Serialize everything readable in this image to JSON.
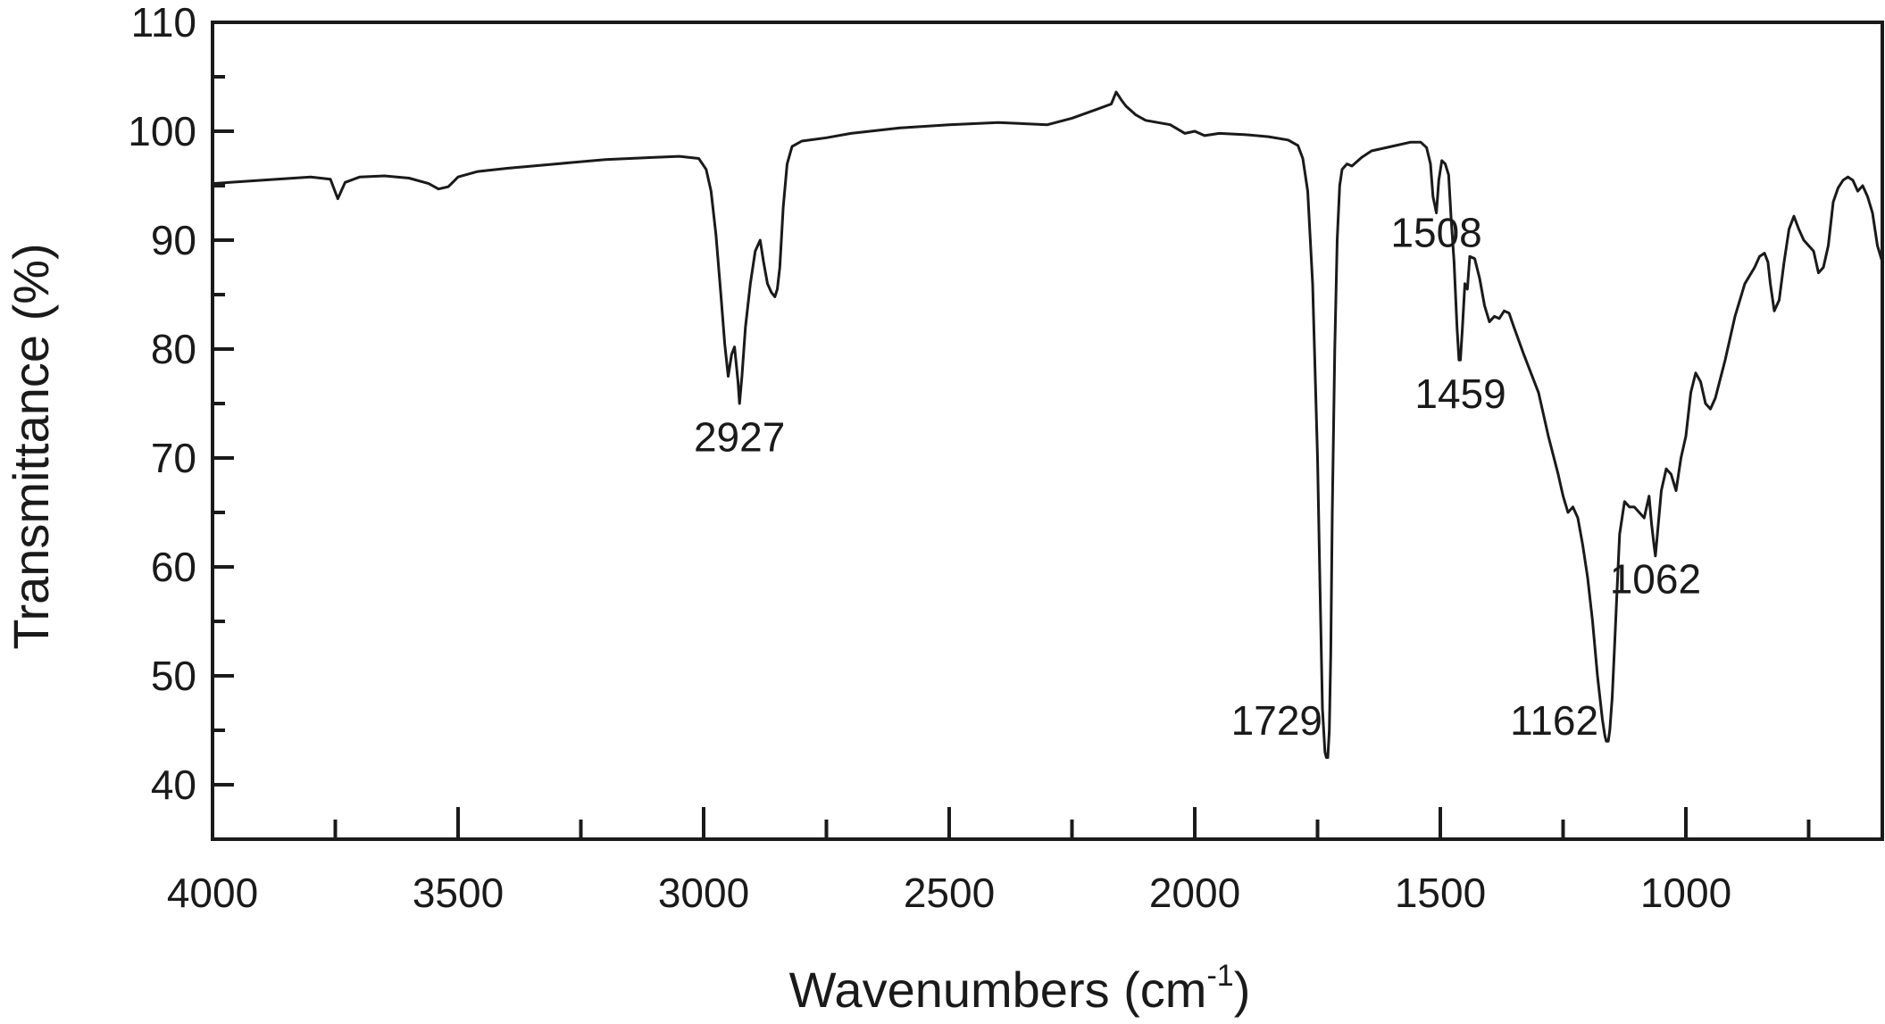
{
  "chart_data": {
    "type": "line",
    "xlabel": "Wavenumbers (cm",
    "xlabel_sup": "-1",
    "xlabel_close": ")",
    "ylabel": "Transmittance (%)",
    "xlim": [
      4000,
      600
    ],
    "ylim": [
      35,
      110
    ],
    "x_reversed": true,
    "grid": false,
    "x_ticks": [
      4000,
      3500,
      3000,
      2500,
      2000,
      1500,
      1000
    ],
    "x_minor_ticks": [
      3750,
      3250,
      2750,
      2250,
      1750,
      1250,
      750
    ],
    "y_ticks": [
      40,
      50,
      60,
      70,
      80,
      90,
      100,
      110
    ],
    "y_minor_ticks": [
      45,
      55,
      65,
      75,
      85,
      95,
      105
    ],
    "line_color": "#1a1a1a",
    "series": [
      {
        "x": [
          4000,
          3900,
          3800,
          3760,
          3745,
          3730,
          3700,
          3650,
          3600,
          3560,
          3540,
          3520,
          3500,
          3460,
          3400,
          3300,
          3200,
          3100,
          3050,
          3010,
          2995,
          2985,
          2975,
          2965,
          2957,
          2950,
          2943,
          2937,
          2930,
          2927,
          2922,
          2915,
          2905,
          2895,
          2885,
          2878,
          2870,
          2862,
          2855,
          2850,
          2845,
          2838,
          2830,
          2820,
          2800,
          2750,
          2700,
          2600,
          2500,
          2400,
          2300,
          2250,
          2200,
          2170,
          2160,
          2150,
          2140,
          2120,
          2100,
          2050,
          2020,
          2000,
          1980,
          1950,
          1900,
          1850,
          1810,
          1790,
          1780,
          1770,
          1760,
          1750,
          1745,
          1740,
          1735,
          1732,
          1729,
          1726,
          1723,
          1720,
          1715,
          1710,
          1705,
          1700,
          1690,
          1680,
          1660,
          1640,
          1600,
          1560,
          1540,
          1528,
          1520,
          1515,
          1508,
          1503,
          1497,
          1490,
          1483,
          1478,
          1472,
          1466,
          1462,
          1459,
          1455,
          1450,
          1445,
          1440,
          1430,
          1420,
          1410,
          1400,
          1390,
          1380,
          1370,
          1360,
          1350,
          1330,
          1300,
          1280,
          1260,
          1250,
          1240,
          1230,
          1220,
          1210,
          1200,
          1190,
          1180,
          1170,
          1165,
          1162,
          1158,
          1155,
          1150,
          1145,
          1140,
          1135,
          1125,
          1115,
          1105,
          1095,
          1085,
          1075,
          1070,
          1065,
          1062,
          1058,
          1050,
          1040,
          1030,
          1020,
          1010,
          1000,
          990,
          980,
          970,
          960,
          950,
          940,
          920,
          900,
          880,
          860,
          850,
          840,
          833,
          828,
          820,
          810,
          800,
          790,
          780,
          770,
          760,
          750,
          740,
          730,
          720,
          710,
          700,
          690,
          680,
          670,
          660,
          650,
          640,
          630,
          620,
          610,
          600
        ],
        "y": [
          95.2,
          95.5,
          95.8,
          95.6,
          93.8,
          95.3,
          95.8,
          95.9,
          95.7,
          95.2,
          94.7,
          94.9,
          95.8,
          96.3,
          96.6,
          97.0,
          97.4,
          97.6,
          97.7,
          97.5,
          96.5,
          94.5,
          90.5,
          85.0,
          80.5,
          77.5,
          79.5,
          80.2,
          77.0,
          75.0,
          77.5,
          82.0,
          86.0,
          89.0,
          90.0,
          88.0,
          86.0,
          85.2,
          84.8,
          85.5,
          87.5,
          93.0,
          97.0,
          98.6,
          99.1,
          99.4,
          99.8,
          100.3,
          100.6,
          100.8,
          100.6,
          101.2,
          102.0,
          102.5,
          103.6,
          102.9,
          102.3,
          101.5,
          101.0,
          100.6,
          99.8,
          100.0,
          99.6,
          99.8,
          99.7,
          99.5,
          99.2,
          98.7,
          97.5,
          94.5,
          86.0,
          70.0,
          58.0,
          47.0,
          43.0,
          42.5,
          42.5,
          45.0,
          52.0,
          65.0,
          80.0,
          90.0,
          95.0,
          96.5,
          97.0,
          96.8,
          97.6,
          98.2,
          98.6,
          99.0,
          99.0,
          98.5,
          97.0,
          94.0,
          92.5,
          95.5,
          97.3,
          97.0,
          96.0,
          92.0,
          88.0,
          82.0,
          79.0,
          79.0,
          82.0,
          86.0,
          85.5,
          88.5,
          88.3,
          86.5,
          84.0,
          82.5,
          83.0,
          82.8,
          83.5,
          83.3,
          82.0,
          79.5,
          76.0,
          72.0,
          68.5,
          66.5,
          65.0,
          65.5,
          64.5,
          62.0,
          59.0,
          55.0,
          50.0,
          46.0,
          44.5,
          44.0,
          44.0,
          45.0,
          48.0,
          53.0,
          58.0,
          63.0,
          66.0,
          65.5,
          65.5,
          65.0,
          64.5,
          66.5,
          64.0,
          62.0,
          61.0,
          63.0,
          67.0,
          69.0,
          68.5,
          67.0,
          70.0,
          72.0,
          76.0,
          77.8,
          77.0,
          75.0,
          74.5,
          75.5,
          79.0,
          83.0,
          86.0,
          87.5,
          88.5,
          88.8,
          88.0,
          86.0,
          83.5,
          84.5,
          88.0,
          91.0,
          92.2,
          91.0,
          90.0,
          89.5,
          89.0,
          87.0,
          87.5,
          89.5,
          93.5,
          94.8,
          95.5,
          95.8,
          95.5,
          94.5,
          95.0,
          94.0,
          92.5,
          89.5,
          88.0
        ]
      }
    ],
    "annotations": [
      {
        "text": "2927",
        "x": 2927,
        "y": 70.6,
        "anchor": "middle"
      },
      {
        "text": "1729",
        "x": 1740,
        "y": 44.6,
        "anchor": "end"
      },
      {
        "text": "1508",
        "x": 1508,
        "y": 89.4,
        "anchor": "middle"
      },
      {
        "text": "1459",
        "x": 1459,
        "y": 74.6,
        "anchor": "middle"
      },
      {
        "text": "1162",
        "x": 1178,
        "y": 44.6,
        "anchor": "end"
      },
      {
        "text": "1062",
        "x": 1062,
        "y": 57.6,
        "anchor": "middle"
      }
    ]
  }
}
